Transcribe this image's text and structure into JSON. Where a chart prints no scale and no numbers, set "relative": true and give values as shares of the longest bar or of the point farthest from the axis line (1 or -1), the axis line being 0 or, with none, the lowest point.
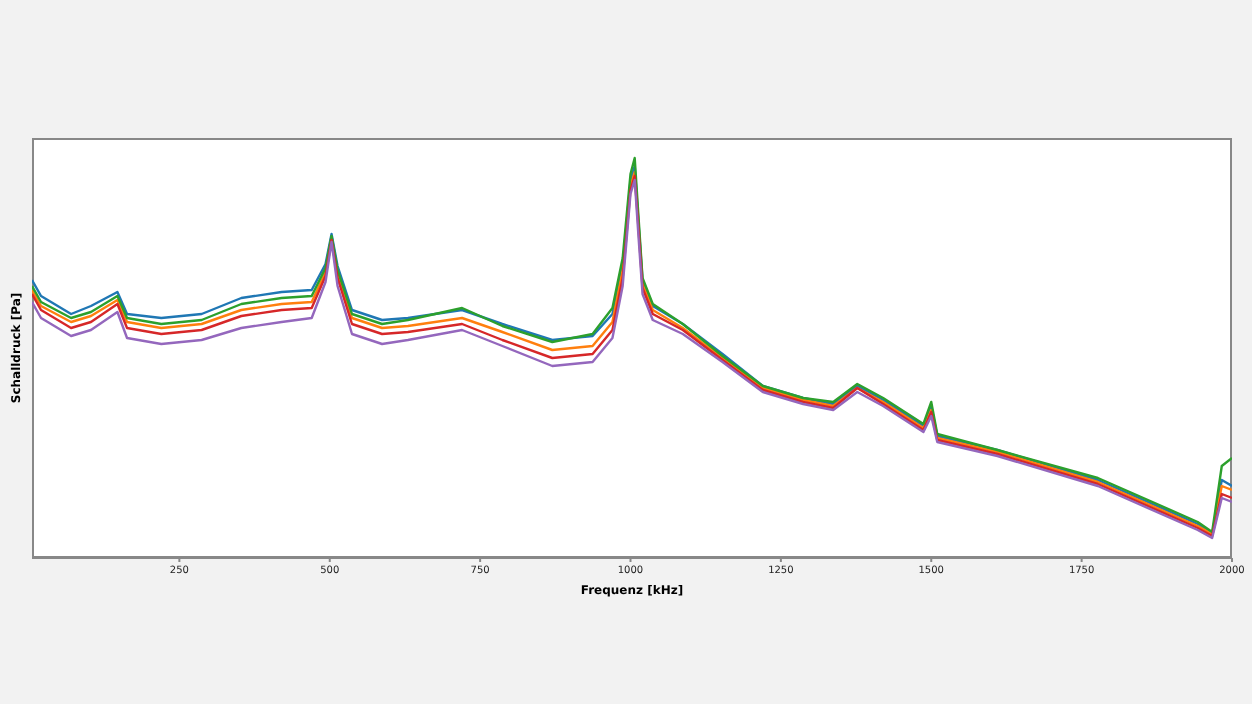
{
  "chart_data": {
    "type": "line",
    "xlabel": "Frequenz [kHz]",
    "ylabel": "Schalldruck [Pa]",
    "relative": true,
    "grid": false,
    "legend": false,
    "marker": "none",
    "line_style": "solid",
    "tick_labels": "x",
    "x": [
      5,
      20,
      70,
      103,
      147,
      163,
      220,
      287,
      353,
      420,
      470,
      493,
      503,
      513,
      537,
      587,
      630,
      720,
      787,
      870,
      937,
      970,
      987,
      1000,
      1007,
      1013,
      1020,
      1037,
      1087,
      1153,
      1220,
      1287,
      1337,
      1377,
      1420,
      1487,
      1500,
      1510,
      1610,
      1777,
      1943,
      1967,
      1983,
      2000
    ],
    "xlim": [
      5,
      2000
    ],
    "xticks": [
      250,
      500,
      750,
      1000,
      1250,
      1500,
      1750,
      2000
    ],
    "series": [
      {
        "color": "#1f77b4",
        "values": [
          0.695,
          0.655,
          0.61,
          0.63,
          0.665,
          0.61,
          0.6,
          0.61,
          0.65,
          0.665,
          0.67,
          0.735,
          0.81,
          0.73,
          0.62,
          0.595,
          0.6,
          0.62,
          0.585,
          0.545,
          0.555,
          0.61,
          0.73,
          0.945,
          0.98,
          0.845,
          0.695,
          0.63,
          0.585,
          0.51,
          0.43,
          0.4,
          0.385,
          0.43,
          0.395,
          0.33,
          0.38,
          0.305,
          0.27,
          0.195,
          0.085,
          0.06,
          0.195,
          0.18
        ]
      },
      {
        "color": "#ff7f0e",
        "values": [
          0.67,
          0.63,
          0.59,
          0.605,
          0.645,
          0.59,
          0.575,
          0.585,
          0.62,
          0.635,
          0.64,
          0.715,
          0.8,
          0.71,
          0.6,
          0.575,
          0.58,
          0.6,
          0.565,
          0.52,
          0.53,
          0.59,
          0.72,
          0.93,
          0.965,
          0.84,
          0.685,
          0.62,
          0.575,
          0.5,
          0.425,
          0.395,
          0.38,
          0.425,
          0.39,
          0.325,
          0.37,
          0.3,
          0.265,
          0.19,
          0.08,
          0.06,
          0.18,
          0.17
        ]
      },
      {
        "color": "#2ca02c",
        "values": [
          0.68,
          0.64,
          0.6,
          0.615,
          0.655,
          0.6,
          0.585,
          0.595,
          0.635,
          0.65,
          0.655,
          0.725,
          0.805,
          0.72,
          0.61,
          0.585,
          0.595,
          0.625,
          0.58,
          0.54,
          0.56,
          0.625,
          0.75,
          0.96,
          1.0,
          0.86,
          0.7,
          0.635,
          0.585,
          0.505,
          0.43,
          0.4,
          0.39,
          0.435,
          0.4,
          0.335,
          0.39,
          0.31,
          0.27,
          0.2,
          0.09,
          0.065,
          0.23,
          0.25
        ]
      },
      {
        "color": "#d62728",
        "values": [
          0.66,
          0.62,
          0.575,
          0.59,
          0.635,
          0.575,
          0.56,
          0.57,
          0.605,
          0.62,
          0.625,
          0.705,
          0.795,
          0.7,
          0.585,
          0.56,
          0.565,
          0.585,
          0.545,
          0.5,
          0.51,
          0.57,
          0.7,
          0.92,
          0.955,
          0.83,
          0.675,
          0.61,
          0.57,
          0.495,
          0.42,
          0.39,
          0.375,
          0.425,
          0.385,
          0.32,
          0.365,
          0.295,
          0.26,
          0.185,
          0.075,
          0.055,
          0.16,
          0.15
        ]
      },
      {
        "color": "#9467bd",
        "values": [
          0.64,
          0.6,
          0.555,
          0.57,
          0.615,
          0.55,
          0.535,
          0.545,
          0.575,
          0.59,
          0.6,
          0.69,
          0.79,
          0.68,
          0.56,
          0.535,
          0.545,
          0.57,
          0.53,
          0.48,
          0.49,
          0.55,
          0.68,
          0.91,
          0.945,
          0.81,
          0.66,
          0.595,
          0.56,
          0.49,
          0.415,
          0.385,
          0.37,
          0.415,
          0.38,
          0.315,
          0.355,
          0.29,
          0.255,
          0.18,
          0.07,
          0.05,
          0.15,
          0.14
        ]
      }
    ]
  }
}
